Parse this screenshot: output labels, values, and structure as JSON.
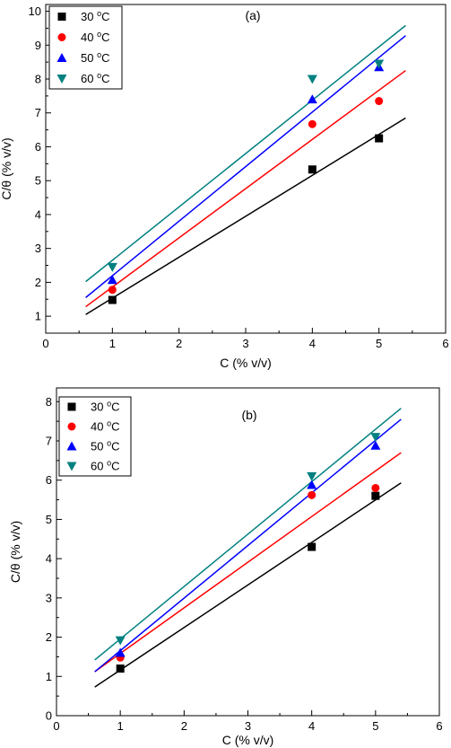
{
  "chart_data": [
    {
      "type": "scatter",
      "panel_label": "(a)",
      "xlabel": "C (% v/v)",
      "ylabel": "C/θ (% v/v)",
      "xlim": [
        0,
        6
      ],
      "ylim": [
        0.5,
        10.2
      ],
      "xticks": [
        0,
        1,
        2,
        3,
        4,
        5,
        6
      ],
      "yticks": [
        1,
        2,
        3,
        4,
        5,
        6,
        7,
        8,
        9,
        10
      ],
      "grid": false,
      "legend_position": "top-left",
      "fit_range": [
        0.6,
        5.4
      ],
      "series": [
        {
          "name": "30 °C",
          "name_main": "30 ",
          "name_sup": "o",
          "name_unit": "C",
          "marker": "square",
          "color": "#000000",
          "x": [
            1,
            4,
            5
          ],
          "y": [
            1.48,
            5.33,
            6.25
          ],
          "fit_y": [
            1.05,
            6.85
          ]
        },
        {
          "name": "40 °C",
          "name_main": "40 ",
          "name_sup": "o",
          "name_unit": "C",
          "marker": "circle",
          "color": "#ff0000",
          "x": [
            1,
            4,
            5
          ],
          "y": [
            1.78,
            6.67,
            7.35
          ],
          "fit_y": [
            1.28,
            8.25
          ]
        },
        {
          "name": "50 °C",
          "name_main": "50 ",
          "name_sup": "o",
          "name_unit": "C",
          "marker": "triangle-up",
          "color": "#0000ff",
          "x": [
            1,
            4,
            5
          ],
          "y": [
            2.07,
            7.4,
            8.35
          ],
          "fit_y": [
            1.55,
            9.28
          ]
        },
        {
          "name": "60 °C",
          "name_main": "60 ",
          "name_sup": "o",
          "name_unit": "C",
          "marker": "triangle-down",
          "color": "#008080",
          "x": [
            1,
            4,
            5
          ],
          "y": [
            2.45,
            8.0,
            8.45
          ],
          "fit_y": [
            2.02,
            9.58
          ]
        }
      ]
    },
    {
      "type": "scatter",
      "panel_label": "(b)",
      "xlabel": "C (% v/v)",
      "ylabel": "C/θ (% v/v)",
      "xlim": [
        0,
        6
      ],
      "ylim": [
        0,
        8.35
      ],
      "xticks": [
        0,
        1,
        2,
        3,
        4,
        5,
        6
      ],
      "yticks": [
        0,
        1,
        2,
        3,
        4,
        5,
        6,
        7,
        8
      ],
      "grid": false,
      "legend_position": "top-left",
      "fit_range": [
        0.6,
        5.4
      ],
      "series": [
        {
          "name": "30 °C",
          "name_main": "30 ",
          "name_sup": "o",
          "name_unit": "C",
          "marker": "square",
          "color": "#000000",
          "x": [
            1,
            4,
            5
          ],
          "y": [
            1.2,
            4.3,
            5.6
          ],
          "fit_y": [
            0.73,
            5.93
          ]
        },
        {
          "name": "40 °C",
          "name_main": "40 ",
          "name_sup": "o",
          "name_unit": "C",
          "marker": "circle",
          "color": "#ff0000",
          "x": [
            1,
            4,
            5
          ],
          "y": [
            1.48,
            5.62,
            5.8
          ],
          "fit_y": [
            1.12,
            6.7
          ]
        },
        {
          "name": "50 °C",
          "name_main": "50 ",
          "name_sup": "o",
          "name_unit": "C",
          "marker": "triangle-up",
          "color": "#0000ff",
          "x": [
            1,
            4,
            5
          ],
          "y": [
            1.6,
            5.88,
            6.88
          ],
          "fit_y": [
            1.12,
            7.55
          ]
        },
        {
          "name": "60 °C",
          "name_main": "60 ",
          "name_sup": "o",
          "name_unit": "C",
          "marker": "triangle-down",
          "color": "#008080",
          "x": [
            1,
            4,
            5
          ],
          "y": [
            1.92,
            6.1,
            7.1
          ],
          "fit_y": [
            1.42,
            7.83
          ]
        }
      ]
    }
  ]
}
